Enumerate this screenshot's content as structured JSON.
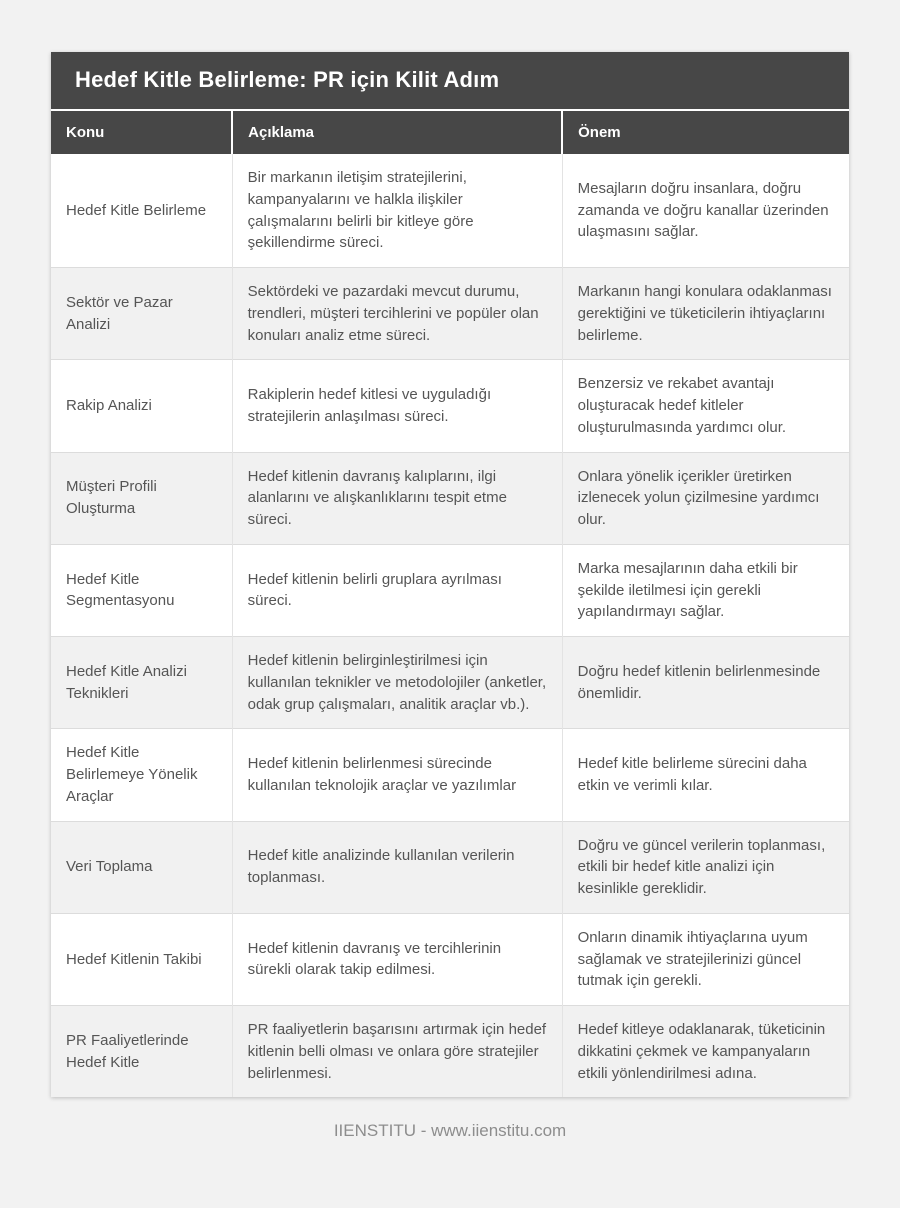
{
  "page": {
    "background": "#f2f2f2",
    "footer_text": "IIENSTITU - www.iienstitu.com"
  },
  "table": {
    "title": "Hedef Kitle Belirleme: PR için Kilit Adım",
    "colors": {
      "header_bg": "#474747",
      "header_text": "#ffffff",
      "body_text": "#555555",
      "stripe_bg": "#f1f1f1",
      "border": "#dcdcdc"
    },
    "columns": [
      "Konu",
      "Açıklama",
      "Önem"
    ],
    "rows": [
      {
        "konu": "Hedef Kitle Belirleme",
        "aciklama": "Bir markanın iletişim stratejilerini, kampanyalarını ve halkla ilişkiler çalışmalarını belirli bir kitleye göre şekillendirme süreci.",
        "onem": "Mesajların doğru insanlara, doğru zamanda ve doğru kanallar üzerinden ulaşmasını sağlar."
      },
      {
        "konu": "Sektör ve Pazar Analizi",
        "aciklama": "Sektördeki ve pazardaki mevcut durumu, trendleri, müşteri tercihlerini ve popüler olan konuları analiz etme süreci.",
        "onem": "Markanın hangi konulara odaklanması gerektiğini ve tüketicilerin ihtiyaçlarını belirleme."
      },
      {
        "konu": "Rakip Analizi",
        "aciklama": "Rakiplerin hedef kitlesi ve uyguladığı stratejilerin anlaşılması süreci.",
        "onem": "Benzersiz ve rekabet avantajı oluşturacak hedef kitleler oluşturulmasında yardımcı olur."
      },
      {
        "konu": "Müşteri Profili Oluşturma",
        "aciklama": "Hedef kitlenin davranış kalıplarını, ilgi alanlarını ve alışkanlıklarını tespit etme süreci.",
        "onem": "Onlara yönelik içerikler üretirken izlenecek yolun çizilmesine yardımcı olur."
      },
      {
        "konu": "Hedef Kitle Segmentasyonu",
        "aciklama": "Hedef kitlenin belirli gruplara ayrılması süreci.",
        "onem": "Marka mesajlarının daha etkili bir şekilde iletilmesi için gerekli yapılandırmayı sağlar."
      },
      {
        "konu": "Hedef Kitle Analizi Teknikleri",
        "aciklama": "Hedef kitlenin belirginleştirilmesi için kullanılan teknikler ve metodolojiler (anketler, odak grup çalışmaları, analitik araçlar vb.).",
        "onem": "Doğru hedef kitlenin belirlenmesinde önemlidir."
      },
      {
        "konu": "Hedef Kitle Belirlemeye Yönelik Araçlar",
        "aciklama": "Hedef kitlenin belirlenmesi sürecinde kullanılan teknolojik araçlar ve yazılımlar",
        "onem": "Hedef kitle belirleme sürecini daha etkin ve verimli kılar."
      },
      {
        "konu": "Veri Toplama",
        "aciklama": "Hedef kitle analizinde kullanılan verilerin toplanması.",
        "onem": "Doğru ve güncel verilerin toplanması, etkili bir hedef kitle analizi için kesinlikle gereklidir."
      },
      {
        "konu": "Hedef Kitlenin Takibi",
        "aciklama": "Hedef kitlenin davranış ve tercihlerinin sürekli olarak takip edilmesi.",
        "onem": "Onların dinamik ihtiyaçlarına uyum sağlamak ve stratejilerinizi güncel tutmak için gerekli."
      },
      {
        "konu": "PR Faaliyetlerinde Hedef Kitle",
        "aciklama": "PR faaliyetlerin başarısını artırmak için hedef kitlenin belli olması ve onlara göre stratejiler belirlenmesi.",
        "onem": "Hedef kitleye odaklanarak, tüketicinin dikkatini çekmek ve kampanyaların etkili yönlendirilmesi adına."
      }
    ]
  }
}
